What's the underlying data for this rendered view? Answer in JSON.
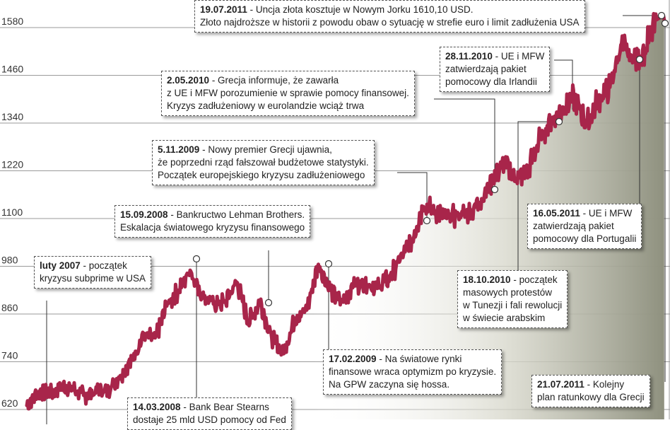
{
  "chart_data": {
    "type": "line",
    "title": "",
    "xlabel": "",
    "ylabel": "",
    "ylim": [
      600,
      1640
    ],
    "y_ticks": [
      620,
      740,
      860,
      980,
      1100,
      1220,
      1340,
      1460,
      1580
    ],
    "grid": true,
    "series_color": "#a8254a",
    "area_fill": "gradient-grey",
    "x_range": [
      "2007-01",
      "2011-07"
    ],
    "series": [
      {
        "values": [
          {
            "x": "2007-01",
            "y": 630
          },
          {
            "x": "2007-02",
            "y": 665
          },
          {
            "x": "2007-03",
            "y": 660
          },
          {
            "x": "2007-04",
            "y": 680
          },
          {
            "x": "2007-05",
            "y": 670
          },
          {
            "x": "2007-06",
            "y": 655
          },
          {
            "x": "2007-07",
            "y": 665
          },
          {
            "x": "2007-08",
            "y": 670
          },
          {
            "x": "2007-09",
            "y": 705
          },
          {
            "x": "2007-10",
            "y": 745
          },
          {
            "x": "2007-11",
            "y": 805
          },
          {
            "x": "2007-12",
            "y": 800
          },
          {
            "x": "2008-01",
            "y": 880
          },
          {
            "x": "2008-02",
            "y": 920
          },
          {
            "x": "2008-03",
            "y": 970
          },
          {
            "x": "2008-04",
            "y": 910
          },
          {
            "x": "2008-05",
            "y": 885
          },
          {
            "x": "2008-06",
            "y": 890
          },
          {
            "x": "2008-07",
            "y": 940
          },
          {
            "x": "2008-08",
            "y": 840
          },
          {
            "x": "2008-09",
            "y": 890
          },
          {
            "x": "2008-10",
            "y": 800
          },
          {
            "x": "2008-11",
            "y": 760
          },
          {
            "x": "2008-12",
            "y": 850
          },
          {
            "x": "2009-01",
            "y": 870
          },
          {
            "x": "2009-02",
            "y": 985
          },
          {
            "x": "2009-03",
            "y": 920
          },
          {
            "x": "2009-04",
            "y": 890
          },
          {
            "x": "2009-05",
            "y": 930
          },
          {
            "x": "2009-06",
            "y": 940
          },
          {
            "x": "2009-07",
            "y": 925
          },
          {
            "x": "2009-08",
            "y": 950
          },
          {
            "x": "2009-09",
            "y": 995
          },
          {
            "x": "2009-10",
            "y": 1045
          },
          {
            "x": "2009-11",
            "y": 1130
          },
          {
            "x": "2009-12",
            "y": 1120
          },
          {
            "x": "2010-01",
            "y": 1100
          },
          {
            "x": "2010-02",
            "y": 1110
          },
          {
            "x": "2010-03",
            "y": 1115
          },
          {
            "x": "2010-04",
            "y": 1150
          },
          {
            "x": "2010-05",
            "y": 1200
          },
          {
            "x": "2010-06",
            "y": 1240
          },
          {
            "x": "2010-07",
            "y": 1195
          },
          {
            "x": "2010-08",
            "y": 1225
          },
          {
            "x": "2010-09",
            "y": 1300
          },
          {
            "x": "2010-10",
            "y": 1345
          },
          {
            "x": "2010-11",
            "y": 1380
          },
          {
            "x": "2010-12",
            "y": 1405
          },
          {
            "x": "2011-01",
            "y": 1335
          },
          {
            "x": "2011-02",
            "y": 1400
          },
          {
            "x": "2011-03",
            "y": 1430
          },
          {
            "x": "2011-04",
            "y": 1540
          },
          {
            "x": "2011-05",
            "y": 1495
          },
          {
            "x": "2011-06",
            "y": 1525
          },
          {
            "x": "2011-07",
            "y": 1600
          }
        ]
      }
    ],
    "annotations": [
      {
        "id": "luty-2007",
        "date": "2007-02",
        "value": 665,
        "lines": [
          {
            "bold": "luty 2007",
            "text": " - początek"
          },
          {
            "bold": "",
            "text": "kryzysu subprime w USA"
          }
        ]
      },
      {
        "id": "14-03-2008",
        "date": "2008-03-14",
        "value": 975,
        "lines": [
          {
            "bold": "14.03.2008",
            "text": " - Bank Bear Stearns"
          },
          {
            "bold": "",
            "text": "dostaje 25 mld USD pomocy od Fed"
          }
        ]
      },
      {
        "id": "15-09-2008",
        "date": "2008-09-15",
        "value": 890,
        "lines": [
          {
            "bold": "15.09.2008",
            "text": " - Bankructwo Lehman Brothers."
          },
          {
            "bold": "",
            "text": "Eskalacja światowego kryzysu finansowego"
          }
        ]
      },
      {
        "id": "17-02-2009",
        "date": "2009-02-17",
        "value": 985,
        "lines": [
          {
            "bold": "17.02.2009",
            "text": " - Na światowe rynki"
          },
          {
            "bold": "",
            "text": "finansowe wraca optymizm po kryzysie."
          },
          {
            "bold": "",
            "text": "Na GPW zaczyna się hossa."
          }
        ]
      },
      {
        "id": "5-11-2009",
        "date": "2009-11-05",
        "value": 1100,
        "lines": [
          {
            "bold": "5.11.2009",
            "text": " - Nowy premier Grecji ujawnia,"
          },
          {
            "bold": "",
            "text": "że poprzedni rząd fałszował budżetowe statystyki."
          },
          {
            "bold": "",
            "text": "Początek europejskiego kryzysu zadłużeniowego"
          }
        ]
      },
      {
        "id": "2-05-2010",
        "date": "2010-05-02",
        "value": 1180,
        "lines": [
          {
            "bold": "2.05.2010",
            "text": " - Grecja informuje, że zawarła"
          },
          {
            "bold": "",
            "text": "z UE i MFW porozumienie w sprawie pomocy finansowej."
          },
          {
            "bold": "",
            "text": "Kryzys zadłużeniowy w eurolandzie wciąż trwa"
          }
        ]
      },
      {
        "id": "18-10-2010",
        "date": "2010-10-18",
        "value": 1345,
        "lines": [
          {
            "bold": "18.10.2010",
            "text": " - początek"
          },
          {
            "bold": "",
            "text": "masowych protestów"
          },
          {
            "bold": "",
            "text": "w Tunezji i fali rewolucji"
          },
          {
            "bold": "",
            "text": "w świecie arabskim"
          }
        ]
      },
      {
        "id": "28-11-2010",
        "date": "2010-11-28",
        "value": 1380,
        "lines": [
          {
            "bold": "28.11.2010",
            "text": " - UE i MFW"
          },
          {
            "bold": "",
            "text": "zatwierdzają pakiet"
          },
          {
            "bold": "",
            "text": "pomocowy dla Irlandii"
          }
        ]
      },
      {
        "id": "16-05-2011",
        "date": "2011-05-16",
        "value": 1495,
        "lines": [
          {
            "bold": "16.05.2011",
            "text": " - UE i MFW"
          },
          {
            "bold": "",
            "text": "zatwierdzają pakiet"
          },
          {
            "bold": "",
            "text": "pomocowy dla Portugalii"
          }
        ]
      },
      {
        "id": "19-07-2011",
        "date": "2011-07-19",
        "value": 1610.1,
        "lines": [
          {
            "bold": "19.07.2011",
            "text": " - Uncja złota kosztuje w Nowym Jorku 1610,10 USD."
          },
          {
            "bold": "",
            "text": "Złoto najdroższe w historii z powodu obaw o sytuację w strefie euro i limit zadłużenia USA"
          }
        ]
      },
      {
        "id": "21-07-2011",
        "date": "2011-07-21",
        "value": 1600,
        "lines": [
          {
            "bold": "21.07.2011",
            "text": " - Kolejny"
          },
          {
            "bold": "",
            "text": "plan ratunkowy dla Grecji"
          }
        ]
      }
    ]
  }
}
